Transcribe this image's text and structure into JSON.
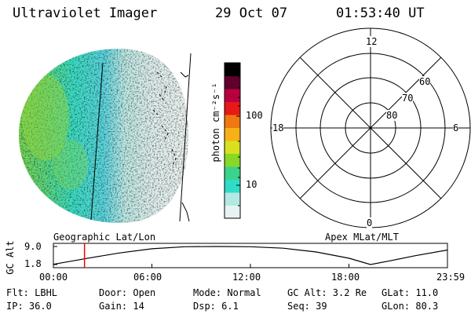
{
  "header": {
    "title": "Ultraviolet Imager",
    "date": "29 Oct 07",
    "time": "01:53:40 UT"
  },
  "colorbar": {
    "unit_label": "photon cm⁻²s⁻¹",
    "ticks": [
      "100",
      "10"
    ],
    "colors": [
      "#e8f2f2",
      "#b4e8e4",
      "#30dcc8",
      "#3cd28c",
      "#88d828",
      "#d8e020",
      "#f8b018",
      "#f07810",
      "#e81818",
      "#b80040",
      "#60002c",
      "#000000"
    ]
  },
  "polar_plot": {
    "mlt_labels": {
      "top": "12",
      "left": "18",
      "right": "6",
      "bottom": "0"
    },
    "lat_labels": [
      "80",
      "70",
      "60"
    ]
  },
  "timeline": {
    "left_title": "Geographic Lat/Lon",
    "right_title": "Apex MLat/MLT",
    "y_axis_label": "GC Alt",
    "y_ticks": [
      "9.0",
      "1.8"
    ],
    "x_ticks": [
      "00:00",
      "06:00",
      "12:00",
      "18:00",
      "23:59"
    ],
    "current_time_marker": "01:53:40",
    "marker_color": "#ff0000",
    "altitude_profile": {
      "x_hours": [
        0,
        2,
        4,
        6,
        8,
        10,
        12,
        14,
        16,
        18,
        19.3,
        20.5,
        22,
        23.98
      ],
      "y_re": [
        1.9,
        4.2,
        6.4,
        8.1,
        8.9,
        9.0,
        8.9,
        8.3,
        6.8,
        4.3,
        1.8,
        3.3,
        5.3,
        7.6
      ]
    }
  },
  "status": {
    "flt_label": "Flt: LBHL",
    "ip_label": "IP: 36.0",
    "door_label": "Door: Open",
    "gain_label": "Gain: 14",
    "mode_label": "Mode: Normal",
    "dsp_label": "Dsp:   6.1",
    "gcalt_label": "GC Alt: 3.2 Re",
    "seq_label": "Seq: 39",
    "glat_label": "GLat: 11.0",
    "glon_label": "GLon: 80.3"
  }
}
